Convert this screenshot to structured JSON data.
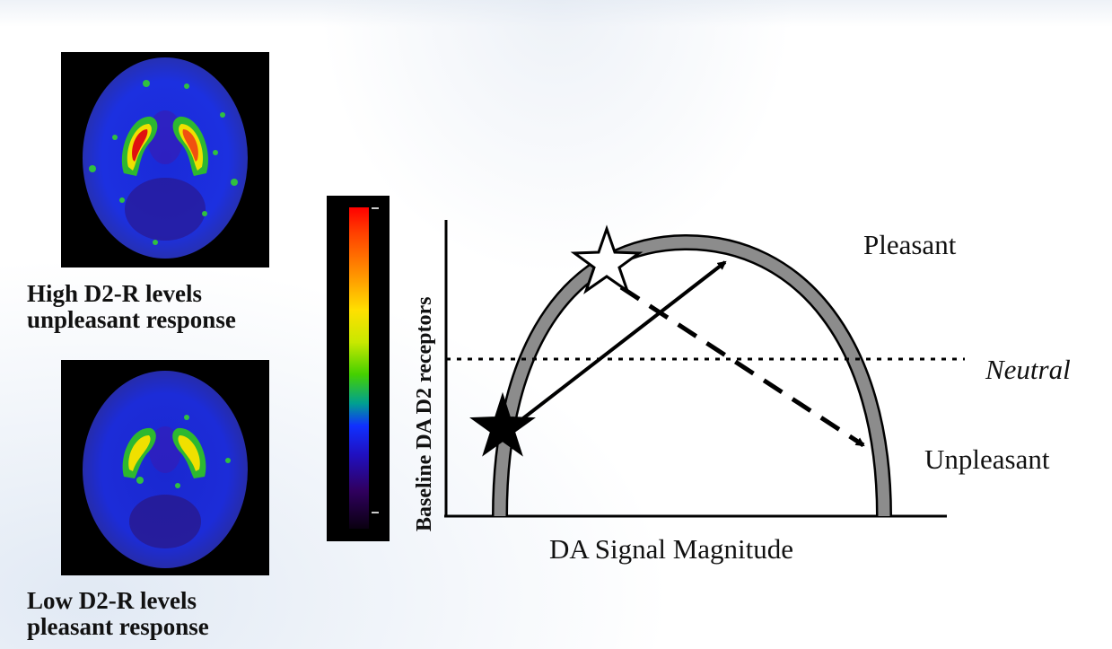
{
  "captions": {
    "top": {
      "line1": "High D2-R levels",
      "line2": "unpleasant response"
    },
    "bottom": {
      "line1": "Low D2-R levels",
      "line2": "pleasant response"
    }
  },
  "plot": {
    "y_axis_label": "Baseline DA D2 receptors",
    "x_axis_label": "DA Signal Magnitude",
    "label_pleasant": "Pleasant",
    "label_neutral": "Neutral",
    "label_unpleasant": "Unpleasant"
  },
  "colors": {
    "arc": "#8c8c8c",
    "arrow": "#000000"
  }
}
